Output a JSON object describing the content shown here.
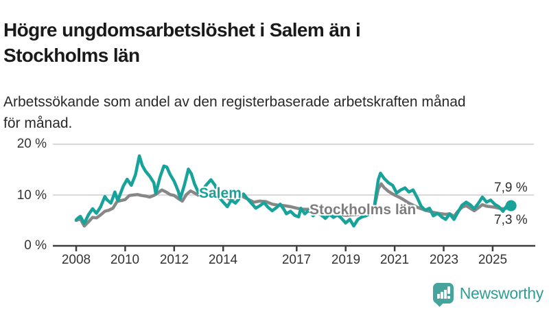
{
  "header": {
    "title_lines": [
      "Högre ungdomsarbetslöshet i Salem än i",
      "Stockholms län"
    ],
    "subtitle_lines": [
      "Arbetssökande som andel av den registerbaserade arbetskraften månad",
      "för månad."
    ]
  },
  "chart_data": {
    "type": "line",
    "unit": "percent",
    "title": "Högre ungdomsarbetslöshet i Salem än i Stockholms län",
    "xlabel": "",
    "ylabel": "",
    "ylim": [
      0,
      21
    ],
    "x_range": [
      2008,
      2025.75
    ],
    "grid": "horizontal",
    "colors": {
      "salem": "#17a29a",
      "stockholm": "#878787",
      "gridline": "#d9d9d9",
      "axis": "#3d3d3d",
      "text": "#333333"
    },
    "y_ticks": [
      {
        "value": 0,
        "label": "0 %"
      },
      {
        "value": 10,
        "label": "10 %"
      },
      {
        "value": 20,
        "label": "20 %"
      }
    ],
    "x_ticks": [
      {
        "year": 2008,
        "label": "2008"
      },
      {
        "year": 2010,
        "label": "2010"
      },
      {
        "year": 2012,
        "label": "2012"
      },
      {
        "year": 2014,
        "label": "2014"
      },
      {
        "year": 2017,
        "label": "2017"
      },
      {
        "year": 2019,
        "label": "2019"
      },
      {
        "year": 2021,
        "label": "2021"
      },
      {
        "year": 2023,
        "label": "2023"
      },
      {
        "year": 2025,
        "label": "2025"
      }
    ],
    "series": [
      {
        "name": "Salem",
        "color": "#17a29a",
        "end_value_label": "7,9 %",
        "points": [
          [
            2008.0,
            5.1
          ],
          [
            2008.08,
            5.5
          ],
          [
            2008.17,
            5.8
          ],
          [
            2008.33,
            4.4
          ],
          [
            2008.5,
            6.1
          ],
          [
            2008.67,
            7.3
          ],
          [
            2008.83,
            6.4
          ],
          [
            2009.0,
            7.7
          ],
          [
            2009.17,
            9.7
          ],
          [
            2009.25,
            9.1
          ],
          [
            2009.42,
            8.4
          ],
          [
            2009.58,
            10.6
          ],
          [
            2009.7,
            8.9
          ],
          [
            2009.92,
            11.7
          ],
          [
            2010.08,
            13.1
          ],
          [
            2010.25,
            11.9
          ],
          [
            2010.42,
            14.0
          ],
          [
            2010.58,
            17.7
          ],
          [
            2010.7,
            15.8
          ],
          [
            2010.83,
            14.7
          ],
          [
            2011.0,
            13.7
          ],
          [
            2011.17,
            12.4
          ],
          [
            2011.25,
            10.3
          ],
          [
            2011.42,
            13.5
          ],
          [
            2011.58,
            15.7
          ],
          [
            2011.7,
            15.5
          ],
          [
            2011.83,
            14.1
          ],
          [
            2012.0,
            12.7
          ],
          [
            2012.17,
            10.7
          ],
          [
            2012.25,
            9.3
          ],
          [
            2012.42,
            12.0
          ],
          [
            2012.58,
            15.1
          ],
          [
            2012.7,
            14.2
          ],
          [
            2012.83,
            12.2
          ],
          [
            2013.0,
            10.4
          ],
          [
            2013.17,
            11.1
          ],
          [
            2013.33,
            12.1
          ],
          [
            2013.5,
            13.0
          ],
          [
            2013.67,
            11.9
          ],
          [
            2013.83,
            9.6
          ],
          [
            2014.0,
            8.6
          ],
          [
            2014.17,
            7.7
          ],
          [
            2014.33,
            9.0
          ],
          [
            2014.5,
            8.4
          ],
          [
            2014.67,
            9.4
          ],
          [
            2014.83,
            10.2
          ],
          [
            2015.0,
            9.2
          ],
          [
            2015.17,
            8.3
          ],
          [
            2015.33,
            7.4
          ],
          [
            2015.5,
            7.9
          ],
          [
            2015.67,
            8.5
          ],
          [
            2015.83,
            7.6
          ],
          [
            2016.0,
            6.9
          ],
          [
            2016.17,
            7.5
          ],
          [
            2016.33,
            8.2
          ],
          [
            2016.5,
            7.0
          ],
          [
            2016.58,
            6.3
          ],
          [
            2016.75,
            6.8
          ],
          [
            2016.92,
            6.0
          ],
          [
            2017.08,
            5.7
          ],
          [
            2017.17,
            7.4
          ],
          [
            2017.33,
            6.3
          ],
          [
            2017.5,
            7.0
          ],
          [
            2017.67,
            5.9
          ],
          [
            2017.83,
            6.7
          ],
          [
            2018.0,
            6.1
          ],
          [
            2018.17,
            5.4
          ],
          [
            2018.33,
            6.2
          ],
          [
            2018.5,
            5.6
          ],
          [
            2018.67,
            6.1
          ],
          [
            2018.83,
            5.4
          ],
          [
            2019.0,
            4.5
          ],
          [
            2019.17,
            5.2
          ],
          [
            2019.33,
            3.9
          ],
          [
            2019.5,
            5.2
          ],
          [
            2019.67,
            5.7
          ],
          [
            2019.83,
            5.9
          ],
          [
            2020.0,
            6.4
          ],
          [
            2020.17,
            7.8
          ],
          [
            2020.33,
            13.0
          ],
          [
            2020.42,
            14.3
          ],
          [
            2020.58,
            13.2
          ],
          [
            2020.75,
            12.4
          ],
          [
            2020.92,
            11.9
          ],
          [
            2021.08,
            10.4
          ],
          [
            2021.25,
            11.0
          ],
          [
            2021.42,
            11.4
          ],
          [
            2021.58,
            10.6
          ],
          [
            2021.75,
            11.0
          ],
          [
            2021.92,
            9.5
          ],
          [
            2022.08,
            7.8
          ],
          [
            2022.25,
            7.0
          ],
          [
            2022.42,
            7.4
          ],
          [
            2022.58,
            5.9
          ],
          [
            2022.75,
            6.4
          ],
          [
            2022.92,
            5.7
          ],
          [
            2023.08,
            5.2
          ],
          [
            2023.25,
            6.3
          ],
          [
            2023.42,
            5.2
          ],
          [
            2023.58,
            6.6
          ],
          [
            2023.75,
            8.0
          ],
          [
            2023.92,
            8.6
          ],
          [
            2024.08,
            8.1
          ],
          [
            2024.25,
            7.3
          ],
          [
            2024.42,
            8.4
          ],
          [
            2024.58,
            9.6
          ],
          [
            2024.75,
            8.6
          ],
          [
            2024.92,
            9.0
          ],
          [
            2025.08,
            8.2
          ],
          [
            2025.25,
            7.7
          ],
          [
            2025.42,
            6.8
          ],
          [
            2025.58,
            7.9
          ],
          [
            2025.75,
            7.9
          ]
        ]
      },
      {
        "name": "Stockholms län",
        "color": "#878787",
        "end_value_label": "7,3 %",
        "points": [
          [
            2008.0,
            5.0
          ],
          [
            2008.17,
            5.3
          ],
          [
            2008.33,
            3.9
          ],
          [
            2008.5,
            4.7
          ],
          [
            2008.67,
            5.6
          ],
          [
            2008.83,
            5.5
          ],
          [
            2009.0,
            6.1
          ],
          [
            2009.17,
            6.8
          ],
          [
            2009.33,
            7.0
          ],
          [
            2009.5,
            7.4
          ],
          [
            2009.67,
            8.7
          ],
          [
            2009.83,
            8.9
          ],
          [
            2010.0,
            9.1
          ],
          [
            2010.17,
            9.9
          ],
          [
            2010.33,
            10.0
          ],
          [
            2010.5,
            10.1
          ],
          [
            2010.67,
            9.9
          ],
          [
            2010.83,
            9.8
          ],
          [
            2011.0,
            9.6
          ],
          [
            2011.17,
            9.9
          ],
          [
            2011.33,
            10.4
          ],
          [
            2011.5,
            11.0
          ],
          [
            2011.67,
            10.6
          ],
          [
            2011.83,
            10.1
          ],
          [
            2012.0,
            9.9
          ],
          [
            2012.17,
            9.3
          ],
          [
            2012.33,
            8.8
          ],
          [
            2012.5,
            10.1
          ],
          [
            2012.67,
            10.8
          ],
          [
            2012.83,
            10.4
          ],
          [
            2013.0,
            9.9
          ],
          [
            2013.17,
            9.5
          ],
          [
            2013.33,
            10.3
          ],
          [
            2013.5,
            10.9
          ],
          [
            2013.67,
            10.7
          ],
          [
            2013.83,
            10.3
          ],
          [
            2014.0,
            9.8
          ],
          [
            2014.25,
            9.2
          ],
          [
            2014.5,
            9.5
          ],
          [
            2014.75,
            9.8
          ],
          [
            2015.0,
            9.2
          ],
          [
            2015.25,
            8.6
          ],
          [
            2015.5,
            8.8
          ],
          [
            2015.75,
            8.7
          ],
          [
            2016.0,
            8.2
          ],
          [
            2016.25,
            8.0
          ],
          [
            2016.5,
            7.9
          ],
          [
            2016.75,
            7.7
          ],
          [
            2017.0,
            7.4
          ],
          [
            2017.25,
            7.2
          ],
          [
            2017.5,
            7.2
          ],
          [
            2017.75,
            6.9
          ],
          [
            2018.0,
            6.6
          ],
          [
            2018.25,
            6.4
          ],
          [
            2018.5,
            6.3
          ],
          [
            2018.75,
            6.2
          ],
          [
            2019.0,
            6.0
          ],
          [
            2019.25,
            6.1
          ],
          [
            2019.5,
            6.2
          ],
          [
            2019.75,
            6.3
          ],
          [
            2020.0,
            6.6
          ],
          [
            2020.17,
            7.6
          ],
          [
            2020.33,
            11.2
          ],
          [
            2020.45,
            12.2
          ],
          [
            2020.58,
            11.4
          ],
          [
            2020.75,
            10.7
          ],
          [
            2020.92,
            10.2
          ],
          [
            2021.08,
            9.8
          ],
          [
            2021.25,
            9.4
          ],
          [
            2021.42,
            8.9
          ],
          [
            2021.58,
            8.4
          ],
          [
            2021.75,
            8.0
          ],
          [
            2021.92,
            7.6
          ],
          [
            2022.08,
            7.3
          ],
          [
            2022.25,
            7.0
          ],
          [
            2022.42,
            6.8
          ],
          [
            2022.58,
            6.6
          ],
          [
            2022.75,
            6.4
          ],
          [
            2022.92,
            6.3
          ],
          [
            2023.08,
            6.2
          ],
          [
            2023.25,
            6.3
          ],
          [
            2023.42,
            5.8
          ],
          [
            2023.58,
            6.8
          ],
          [
            2023.75,
            7.6
          ],
          [
            2023.92,
            7.9
          ],
          [
            2024.08,
            7.4
          ],
          [
            2024.25,
            6.9
          ],
          [
            2024.42,
            7.5
          ],
          [
            2024.58,
            8.1
          ],
          [
            2024.75,
            7.8
          ],
          [
            2024.92,
            7.7
          ],
          [
            2025.08,
            7.6
          ],
          [
            2025.25,
            7.4
          ],
          [
            2025.42,
            7.3
          ],
          [
            2025.58,
            7.4
          ],
          [
            2025.75,
            7.3
          ]
        ]
      }
    ],
    "series_labels": [
      {
        "text": "Salem"
      },
      {
        "text": "Stockholms län"
      }
    ],
    "end_labels": [
      {
        "text": "7,9 %"
      },
      {
        "text": "7,3 %"
      }
    ],
    "end_dot": {
      "series": "Salem",
      "x": 2025.75,
      "value": 7.9
    }
  },
  "footer": {
    "brand": "Newsworthy"
  }
}
